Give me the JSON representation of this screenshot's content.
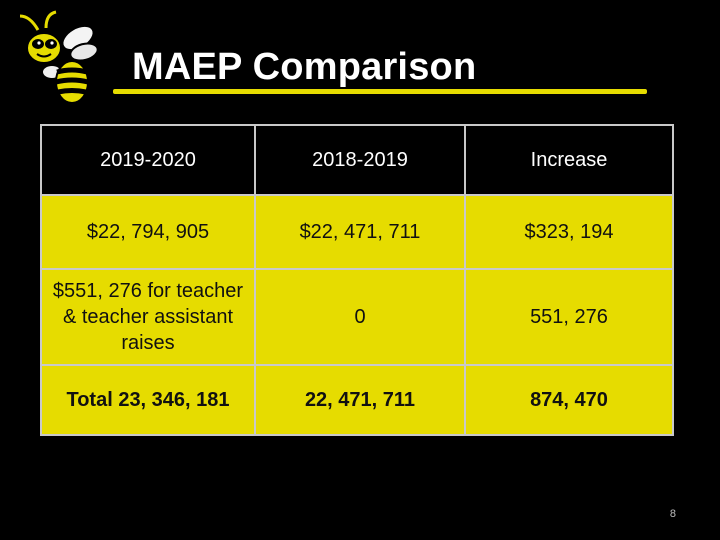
{
  "slide": {
    "title": "MAEP Comparison",
    "page_number": "8",
    "colors": {
      "background": "#000000",
      "accent_yellow": "#e6dc00",
      "header_text": "#ffffff",
      "cell_text": "#111111"
    }
  },
  "table": {
    "headers": [
      "2019-2020",
      "2018-2019",
      "Increase"
    ],
    "rows": [
      [
        "$22, 794, 905",
        "$22, 471, 711",
        "$323, 194"
      ],
      [
        "$551, 276 for teacher & teacher assistant raises",
        "0",
        "551, 276"
      ],
      [
        "Total 23, 346, 181",
        "22, 471, 711",
        "874, 470"
      ]
    ]
  }
}
